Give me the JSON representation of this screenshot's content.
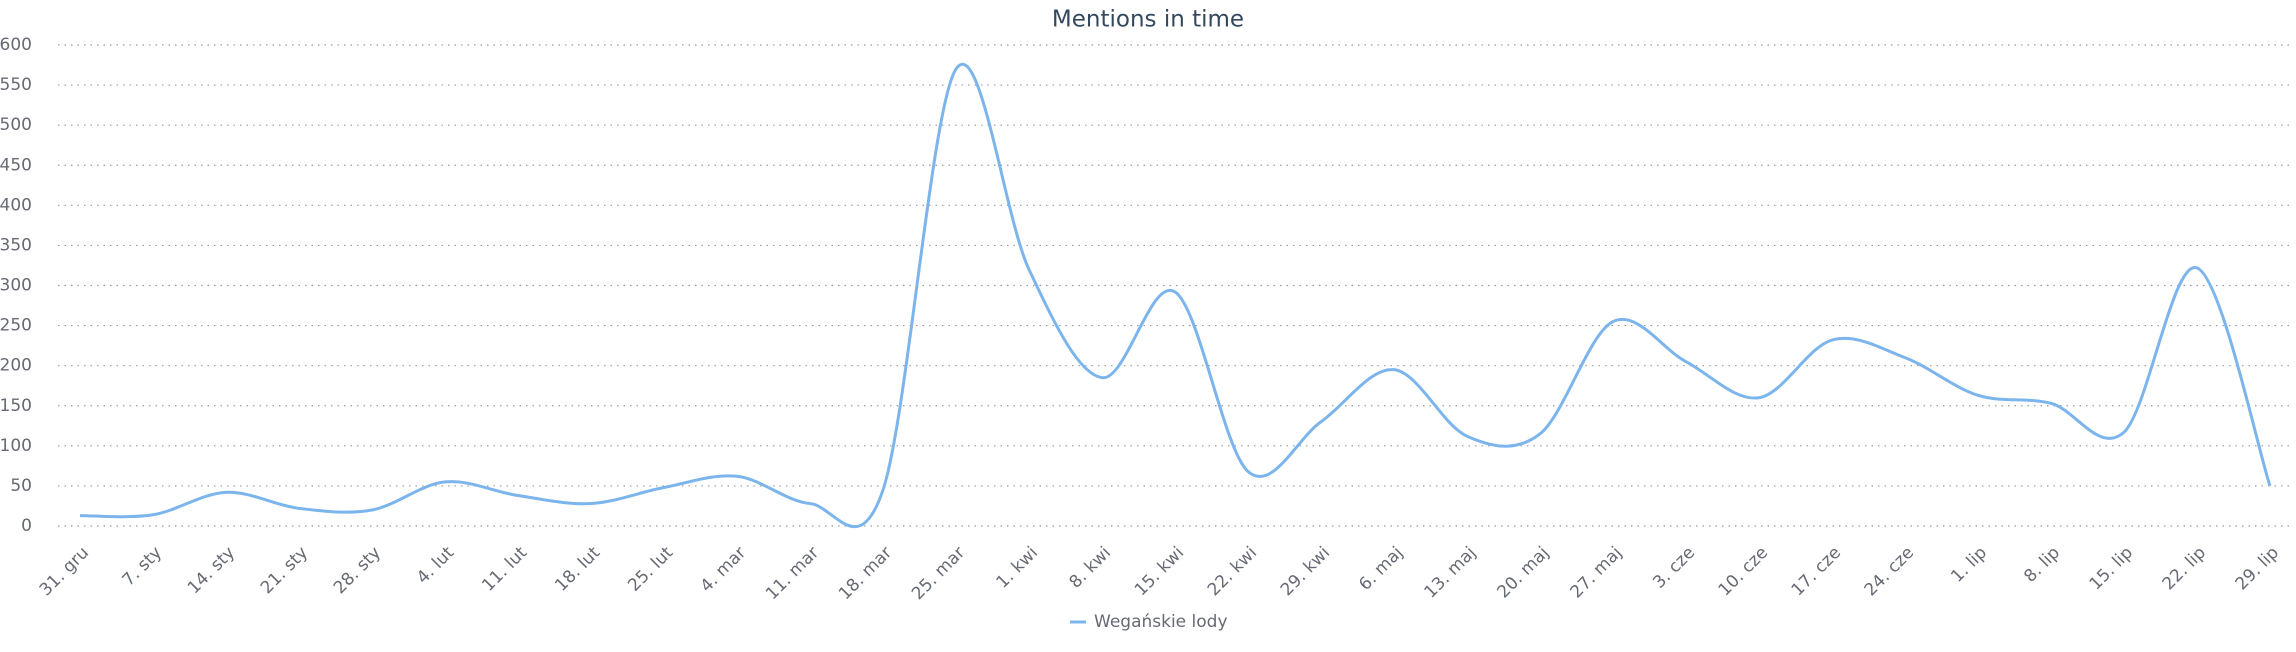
{
  "chart_data": {
    "type": "line",
    "title": "Mentions in time",
    "categories": [
      "31. gru",
      "7. sty",
      "14. sty",
      "21. sty",
      "28. sty",
      "4. lut",
      "11. lut",
      "18. lut",
      "25. lut",
      "4. mar",
      "11. mar",
      "18. mar",
      "25. mar",
      "1. kwi",
      "8. kwi",
      "15. kwi",
      "22. kwi",
      "29. kwi",
      "6. maj",
      "13. maj",
      "20. maj",
      "27. maj",
      "3. cze",
      "10. cze",
      "17. cze",
      "24. cze",
      "1. lip",
      "8. lip",
      "15. lip",
      "22. lip",
      "29. lip"
    ],
    "series": [
      {
        "name": "Wegańskie lody",
        "color": "#7cb5ec",
        "values": [
          13,
          14,
          42,
          22,
          20,
          55,
          38,
          28,
          48,
          62,
          28,
          45,
          570,
          320,
          185,
          292,
          68,
          130,
          195,
          112,
          115,
          255,
          205,
          160,
          232,
          210,
          163,
          153,
          117,
          322,
          50
        ]
      }
    ],
    "ylim": [
      0,
      600
    ],
    "yticks": [
      0,
      50,
      100,
      150,
      200,
      250,
      300,
      350,
      400,
      450,
      500,
      550,
      600
    ],
    "grid": true
  }
}
